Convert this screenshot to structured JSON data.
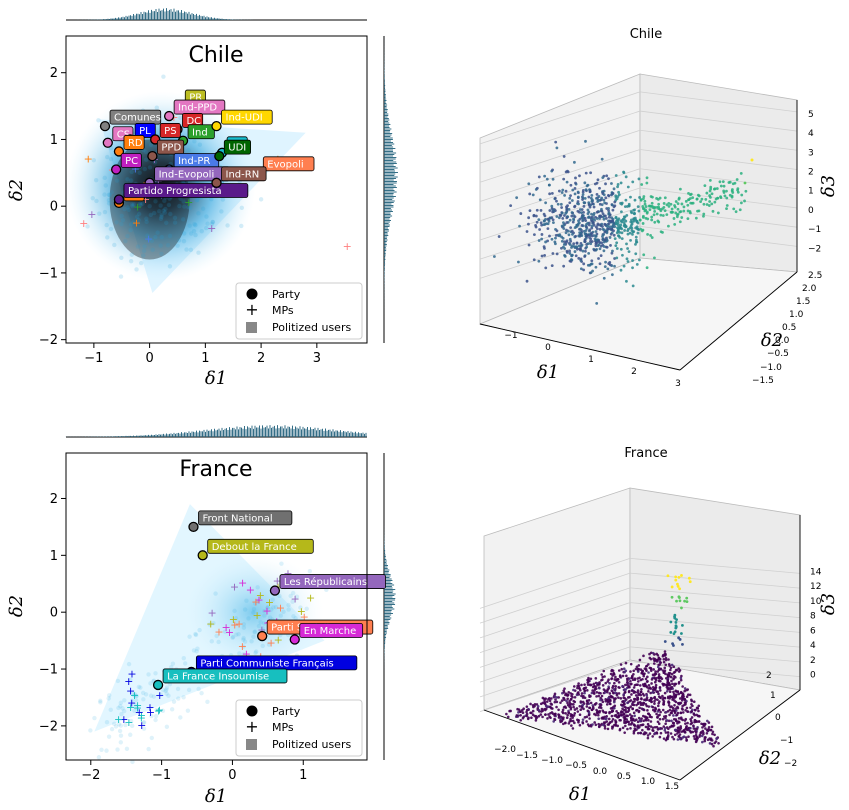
{
  "chart_data": [
    {
      "type": "scatter",
      "subtype": "hexbin-density-with-marginals",
      "title": "Chile",
      "xlabel": "δ1",
      "ylabel": "δ2",
      "xlim": [
        -1.5,
        3.9
      ],
      "ylim": [
        -2.05,
        2.55
      ],
      "xticks": [
        -1,
        0,
        1,
        2,
        3
      ],
      "yticks": [
        -2,
        -1,
        0,
        1,
        2
      ],
      "legend": {
        "placement": "lower-right",
        "entries": [
          "Party",
          "MPs",
          "Politized users"
        ]
      },
      "parties": [
        {
          "name": "Comunes",
          "x": -0.8,
          "y": 1.2,
          "color": "#808080"
        },
        {
          "name": "CS",
          "x": -0.75,
          "y": 0.95,
          "color": "#e377c2"
        },
        {
          "name": "PL",
          "x": -0.35,
          "y": 1.0,
          "color": "#0000ff"
        },
        {
          "name": "RD",
          "x": -0.55,
          "y": 0.82,
          "color": "#ff7f0e"
        },
        {
          "name": "PC",
          "x": -0.6,
          "y": 0.55,
          "color": "#c020c0"
        },
        {
          "name": "PH",
          "x": -0.55,
          "y": 0.05,
          "color": "#ff7f0e"
        },
        {
          "name": "PR",
          "x": 0.55,
          "y": 1.5,
          "color": "#bcbd22"
        },
        {
          "name": "Ind-PPD",
          "x": 0.35,
          "y": 1.35,
          "color": "#e377c2"
        },
        {
          "name": "DC",
          "x": 0.5,
          "y": 1.15,
          "color": "#d62728"
        },
        {
          "name": "PS",
          "x": 0.1,
          "y": 1.0,
          "color": "#d62728"
        },
        {
          "name": "Ind",
          "x": 0.6,
          "y": 0.98,
          "color": "#2ca02c"
        },
        {
          "name": "PPD",
          "x": 0.05,
          "y": 0.75,
          "color": "#8c564b"
        },
        {
          "name": "Ind-PR",
          "x": 0.35,
          "y": 0.55,
          "color": "#4a7ae8"
        },
        {
          "name": "Ind-Evopoli",
          "x": 0.0,
          "y": 0.35,
          "color": "#9467bd"
        },
        {
          "name": "Partido Progresista",
          "x": -0.55,
          "y": 0.1,
          "color": "#5a1a8a"
        },
        {
          "name": "Ind-UDI",
          "x": 1.2,
          "y": 1.2,
          "color": "#ffd700"
        },
        {
          "name": "RN",
          "x": 1.3,
          "y": 0.8,
          "color": "#17becf"
        },
        {
          "name": "UDI",
          "x": 1.25,
          "y": 0.75,
          "color": "#006400"
        },
        {
          "name": "Evopoli",
          "x": 1.95,
          "y": 0.5,
          "color": "#ff7f50"
        },
        {
          "name": "Ind-RN",
          "x": 1.2,
          "y": 0.35,
          "color": "#8c564b"
        }
      ]
    },
    {
      "type": "scatter",
      "subtype": "3d",
      "title": "Chile",
      "xlabel": "δ1",
      "ylabel": "δ2",
      "zlabel": "δ3",
      "xticks": [
        -1,
        0,
        1,
        2,
        3
      ],
      "yticks": [
        -1.5,
        -1.0,
        -0.5,
        0.0,
        0.5,
        1.0,
        1.5,
        2.0,
        2.5
      ],
      "zticks": [
        -2,
        -1,
        0,
        1,
        2,
        3,
        4,
        5
      ],
      "zlim": [
        -2.5,
        5.2
      ]
    },
    {
      "type": "scatter",
      "subtype": "hexbin-density-with-marginals",
      "title": "France",
      "xlabel": "δ1",
      "ylabel": "δ2",
      "xlim": [
        -2.35,
        1.9
      ],
      "ylim": [
        -2.6,
        2.8
      ],
      "xticks": [
        -2,
        -1,
        0,
        1
      ],
      "yticks": [
        -2,
        -1,
        0,
        1,
        2
      ],
      "legend": {
        "placement": "lower-right",
        "entries": [
          "Party",
          "MPs",
          "Politized users"
        ]
      },
      "parties": [
        {
          "name": "Front National",
          "x": -0.55,
          "y": 1.5,
          "color": "#707070"
        },
        {
          "name": "Debout la France",
          "x": -0.42,
          "y": 1.0,
          "color": "#b5b81a"
        },
        {
          "name": "Les Républicains",
          "x": 0.6,
          "y": 0.38,
          "color": "#9467bd"
        },
        {
          "name": "Parti Socialiste",
          "x": 0.42,
          "y": -0.42,
          "color": "#ff7f50"
        },
        {
          "name": "En Marche",
          "x": 0.88,
          "y": -0.48,
          "color": "#d62ad6"
        },
        {
          "name": "Parti Communiste Français",
          "x": -0.58,
          "y": -1.05,
          "color": "#0000e0"
        },
        {
          "name": "La France Insoumise",
          "x": -1.05,
          "y": -1.28,
          "color": "#17bfbf"
        }
      ]
    },
    {
      "type": "scatter",
      "subtype": "3d",
      "title": "France",
      "xlabel": "δ1",
      "ylabel": "δ2",
      "zlabel": "δ3",
      "xticks": [
        -2.0,
        -1.5,
        -1.0,
        -0.5,
        0.0,
        0.5,
        1.0,
        1.5
      ],
      "yticks": [
        -2,
        -1,
        0,
        1,
        2
      ],
      "zticks": [
        0,
        2,
        4,
        6,
        8,
        10,
        12,
        14
      ],
      "zlim": [
        -1,
        15
      ]
    }
  ]
}
